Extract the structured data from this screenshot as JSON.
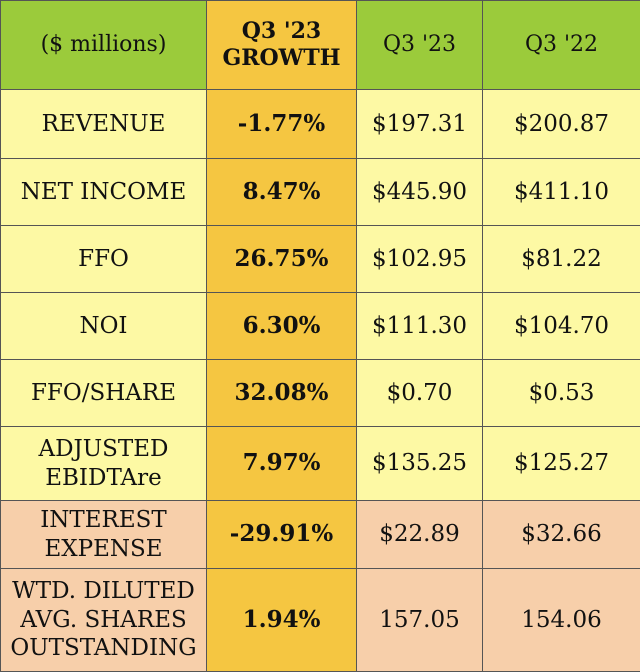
{
  "table": {
    "headers": {
      "metric": "($ millions)",
      "growth_line1": "Q3 '23",
      "growth_line2": "GROWTH",
      "current": "Q3 '23",
      "prior": "Q3 '22"
    },
    "rows": [
      {
        "label_lines": [
          "REVENUE"
        ],
        "growth": "-1.77%",
        "current": "$197.31",
        "prior": "$200.87",
        "band": "yellow"
      },
      {
        "label_lines": [
          "NET INCOME"
        ],
        "growth": "8.47%",
        "current": "$445.90",
        "prior": "$411.10",
        "band": "yellow"
      },
      {
        "label_lines": [
          "FFO"
        ],
        "growth": "26.75%",
        "current": "$102.95",
        "prior": "$81.22",
        "band": "yellow"
      },
      {
        "label_lines": [
          "NOI"
        ],
        "growth": "6.30%",
        "current": "$111.30",
        "prior": "$104.70",
        "band": "yellow"
      },
      {
        "label_lines": [
          "FFO/SHARE"
        ],
        "growth": "32.08%",
        "current": "$0.70",
        "prior": "$0.53",
        "band": "yellow"
      },
      {
        "label_lines": [
          "ADJUSTED",
          "EBIDTAre"
        ],
        "growth": "7.97%",
        "current": "$135.25",
        "prior": "$125.27",
        "band": "yellow"
      },
      {
        "label_lines": [
          "INTEREST",
          "EXPENSE"
        ],
        "growth": "-29.91%",
        "current": "$22.89",
        "prior": "$32.66",
        "band": "peach"
      },
      {
        "label_lines": [
          "WTD. DILUTED",
          "AVG. SHARES",
          "OUTSTANDING"
        ],
        "growth": "1.94%",
        "current": "157.05",
        "prior": "154.06",
        "band": "peach"
      }
    ]
  },
  "colors": {
    "header_green": "#9bcb3b",
    "growth_gold": "#f5c641",
    "row_yellow": "#fdf9a4",
    "row_peach": "#f7cfaa"
  }
}
